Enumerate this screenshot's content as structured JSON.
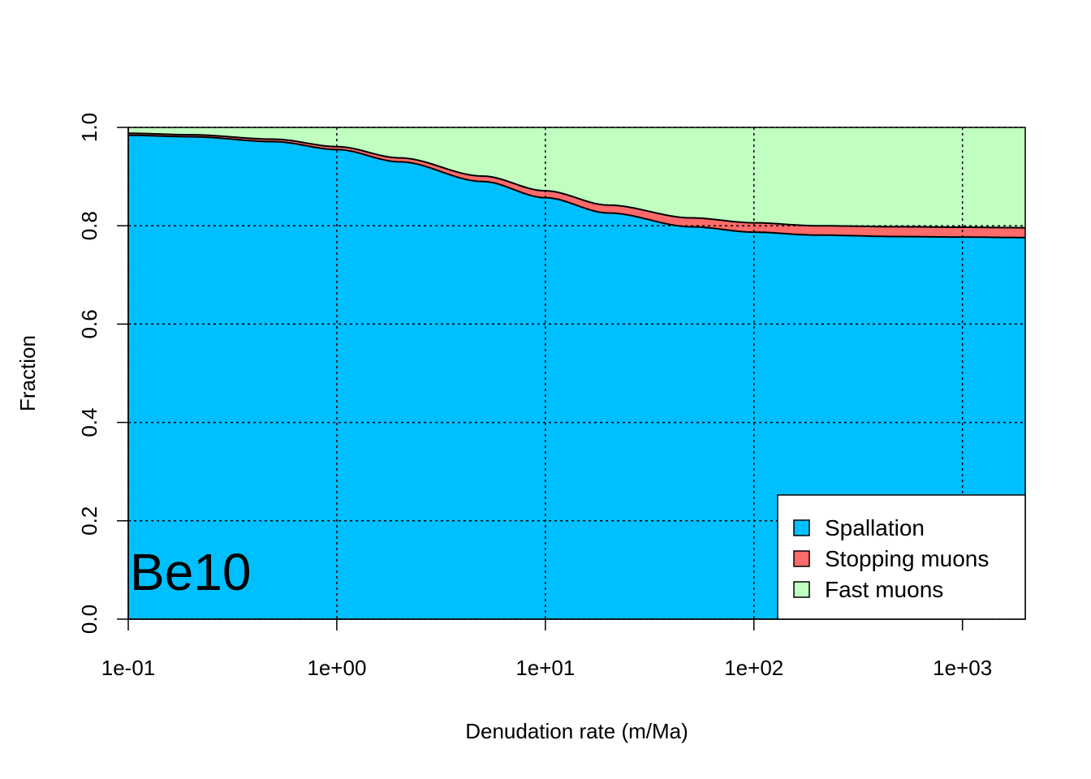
{
  "chart_data": {
    "type": "area",
    "stacked": true,
    "title": "",
    "xlabel": "Denudation rate (m/Ma)",
    "ylabel": "Fraction",
    "x_scale": "log",
    "xlim": [
      0.1,
      2000
    ],
    "ylim": [
      0,
      1
    ],
    "grid": true,
    "x_ticks": [
      0.1,
      1,
      10,
      100,
      1000
    ],
    "x_tick_labels": [
      "1e-01",
      "1e+00",
      "1e+01",
      "1e+02",
      "1e+03"
    ],
    "y_ticks": [
      0,
      0.2,
      0.4,
      0.6,
      0.8,
      1
    ],
    "y_tick_labels": [
      "0.0",
      "0.2",
      "0.4",
      "0.6",
      "0.8",
      "1.0"
    ],
    "annotation": "Be10",
    "annotation_position": "bottom-left",
    "legend_position": "bottom-right",
    "x": [
      0.1,
      0.2,
      0.5,
      1,
      2,
      5,
      10,
      20,
      50,
      100,
      200,
      500,
      1000,
      2000
    ],
    "series": [
      {
        "name": "Spallation",
        "color": "#00BFFF",
        "values": [
          0.984,
          0.981,
          0.971,
          0.955,
          0.93,
          0.89,
          0.857,
          0.826,
          0.798,
          0.787,
          0.781,
          0.778,
          0.777,
          0.776
        ]
      },
      {
        "name": "Stopping muons",
        "color": "#FF6A6A",
        "values": [
          0.004,
          0.004,
          0.005,
          0.006,
          0.008,
          0.011,
          0.014,
          0.016,
          0.018,
          0.019,
          0.019,
          0.02,
          0.02,
          0.02
        ]
      },
      {
        "name": "Fast muons",
        "color": "#C1FFC1",
        "values": [
          0.012,
          0.015,
          0.024,
          0.039,
          0.062,
          0.099,
          0.129,
          0.158,
          0.184,
          0.194,
          0.2,
          0.202,
          0.203,
          0.204
        ]
      }
    ]
  }
}
